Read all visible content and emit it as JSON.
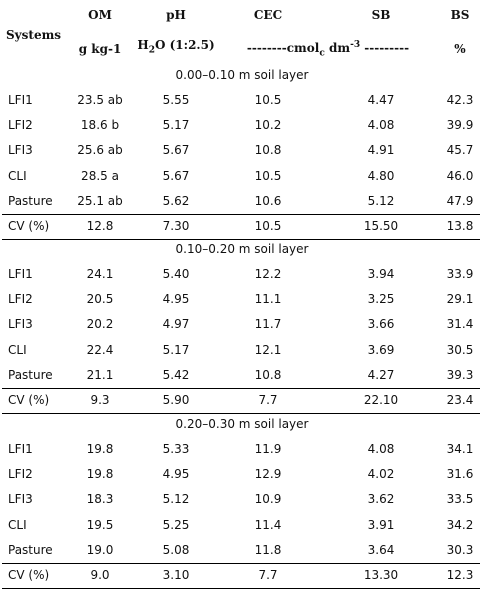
{
  "header": {
    "systems": "Systems",
    "om": "OM",
    "ph": "pH",
    "cec": "CEC",
    "sb": "SB",
    "bs": "BS",
    "om_unit": "g kg-1",
    "ph_unit_pre": "H",
    "ph_unit_sub": "2",
    "ph_unit_post": "O (1:2.5)",
    "cmol_pre": "--------cmol",
    "cmol_sub": "c",
    "cmol_mid": " dm",
    "cmol_sup": "-3",
    "cmol_post": " ---------",
    "bs_unit": "%"
  },
  "sections": [
    {
      "title": "0.00–0.10 m soil layer",
      "rows": [
        {
          "system": "LFI1",
          "om": "23.5 ab",
          "ph": "5.55",
          "cec": "10.5",
          "sb": "4.47",
          "bs": "42.3"
        },
        {
          "system": "LFI2",
          "om": "18.6 b",
          "ph": "5.17",
          "cec": "10.2",
          "sb": "4.08",
          "bs": "39.9"
        },
        {
          "system": "LFI3",
          "om": "25.6 ab",
          "ph": "5.67",
          "cec": "10.8",
          "sb": "4.91",
          "bs": "45.7"
        },
        {
          "system": "CLI",
          "om": "28.5 a",
          "ph": "5.67",
          "cec": "10.5",
          "sb": "4.80",
          "bs": "46.0"
        },
        {
          "system": "Pasture",
          "om": "25.1 ab",
          "ph": "5.62",
          "cec": "10.6",
          "sb": "5.12",
          "bs": "47.9"
        }
      ],
      "cv": {
        "label": "CV (%)",
        "om": "12.8",
        "ph": "7.30",
        "cec": "10.5",
        "sb": "15.50",
        "bs": "13.8"
      }
    },
    {
      "title": "0.10–0.20 m soil layer",
      "rows": [
        {
          "system": "LFI1",
          "om": "24.1",
          "ph": "5.40",
          "cec": "12.2",
          "sb": "3.94",
          "bs": "33.9"
        },
        {
          "system": "LFI2",
          "om": "20.5",
          "ph": "4.95",
          "cec": "11.1",
          "sb": "3.25",
          "bs": "29.1"
        },
        {
          "system": "LFI3",
          "om": "20.2",
          "ph": "4.97",
          "cec": "11.7",
          "sb": "3.66",
          "bs": "31.4"
        },
        {
          "system": "CLI",
          "om": "22.4",
          "ph": "5.17",
          "cec": "12.1",
          "sb": "3.69",
          "bs": "30.5"
        },
        {
          "system": "Pasture",
          "om": "21.1",
          "ph": "5.42",
          "cec": "10.8",
          "sb": "4.27",
          "bs": "39.3"
        }
      ],
      "cv": {
        "label": "CV (%)",
        "om": "9.3",
        "ph": "5.90",
        "cec": "7.7",
        "sb": "22.10",
        "bs": "23.4"
      }
    },
    {
      "title": "0.20–0.30 m soil layer",
      "rows": [
        {
          "system": "LFI1",
          "om": "19.8",
          "ph": "5.33",
          "cec": "11.9",
          "sb": "4.08",
          "bs": "34.1"
        },
        {
          "system": "LFI2",
          "om": "19.8",
          "ph": "4.95",
          "cec": "12.9",
          "sb": "4.02",
          "bs": "31.6"
        },
        {
          "system": "LFI3",
          "om": "18.3",
          "ph": "5.12",
          "cec": "10.9",
          "sb": "3.62",
          "bs": "33.5"
        },
        {
          "system": "CLI",
          "om": "19.5",
          "ph": "5.25",
          "cec": "11.4",
          "sb": "3.91",
          "bs": "34.2"
        },
        {
          "system": "Pasture",
          "om": "19.0",
          "ph": "5.08",
          "cec": "11.8",
          "sb": "3.64",
          "bs": "30.3"
        }
      ],
      "cv": {
        "label": "CV (%)",
        "om": "9.0",
        "ph": "3.10",
        "cec": "7.7",
        "sb": "13.30",
        "bs": "12.3"
      }
    }
  ]
}
